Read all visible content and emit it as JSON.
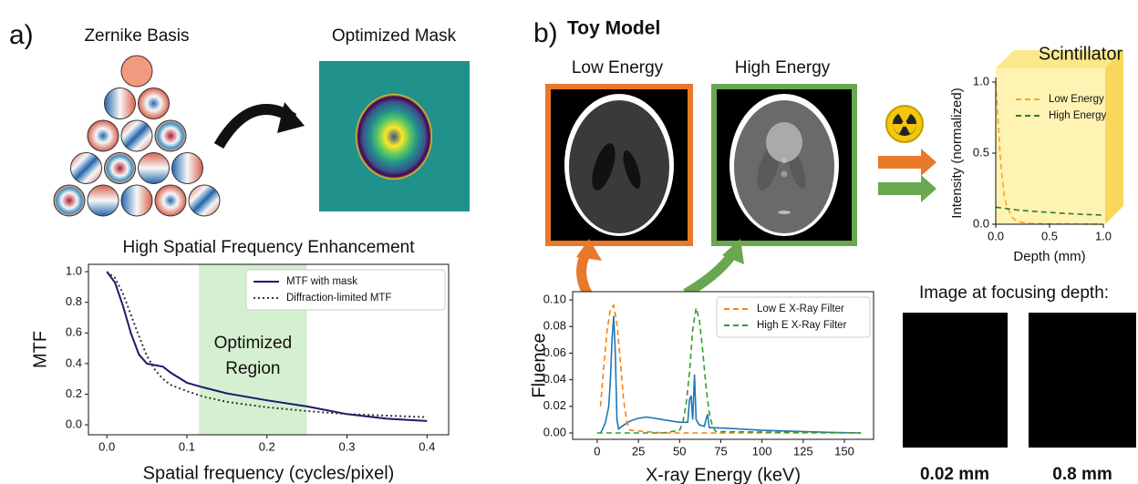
{
  "figure": {
    "panel_a": "a)",
    "zernike_title": "Zernike Basis",
    "mask_title": "Optimized Mask",
    "panel_b": "b)",
    "toy_title": "Toy Model",
    "low_title": "Low Energy",
    "high_title": "High Energy",
    "focus_title": "Image at focusing depth:",
    "depth_labels": [
      "0.02 mm",
      "0.8 mm"
    ]
  },
  "chart_data": [
    {
      "type": "line",
      "title": "High Spatial Frequency Enhancement",
      "x_label": "Spatial frequency (cycles/pixel)",
      "y_label": "MTF",
      "xlim": [
        -0.023,
        0.427
      ],
      "ylim": [
        -0.065,
        1.048
      ],
      "xticks": [
        {
          "value": 0,
          "label": "0.0"
        },
        0.1,
        0.2,
        0.3,
        0.4
      ],
      "yticks": [
        {
          "value": 0,
          "label": "0.0"
        },
        0.2,
        0.4,
        0.6,
        0.8,
        {
          "value": 1,
          "label": "1.0"
        }
      ],
      "span": [
        0.115,
        0.25
      ],
      "span_color": "#d5f0d0",
      "annotation": [
        "Optimized",
        "Region"
      ],
      "legend": "upper right",
      "series": [
        {
          "name": "MTF with mask",
          "color": "#1a1a6e",
          "linestyle": "solid",
          "x": [
            0,
            0.01,
            0.02,
            0.03,
            0.04,
            0.05,
            0.06,
            0.07,
            0.08,
            0.1,
            0.12,
            0.15,
            0.2,
            0.25,
            0.3,
            0.35,
            0.4
          ],
          "values": [
            1.0,
            0.93,
            0.78,
            0.6,
            0.46,
            0.4,
            0.39,
            0.38,
            0.34,
            0.275,
            0.245,
            0.205,
            0.16,
            0.12,
            0.07,
            0.04,
            0.025
          ]
        },
        {
          "name": "Diffraction-limited MTF",
          "color": "#333333",
          "linestyle": "dotted",
          "x": [
            0,
            0.01,
            0.02,
            0.03,
            0.04,
            0.05,
            0.06,
            0.07,
            0.08,
            0.1,
            0.12,
            0.15,
            0.2,
            0.25,
            0.3,
            0.35,
            0.4
          ],
          "values": [
            1.0,
            0.96,
            0.86,
            0.72,
            0.58,
            0.45,
            0.36,
            0.3,
            0.26,
            0.22,
            0.185,
            0.15,
            0.115,
            0.09,
            0.07,
            0.06,
            0.05
          ]
        }
      ]
    },
    {
      "type": "line",
      "x_label": "X-ray Energy (keV)",
      "y_label": "Fluence",
      "xlim": [
        -14.9,
        167.7
      ],
      "ylim": [
        -0.0048,
        0.1062
      ],
      "xticks": [
        0,
        25,
        50,
        75,
        100,
        125,
        150
      ],
      "yticks": [
        {
          "value": 0,
          "label": "0.00"
        },
        0.02,
        0.04,
        0.06,
        0.08,
        {
          "value": 0.1,
          "label": "0.10"
        }
      ],
      "legend": "upper right",
      "series": [
        {
          "color": "#1f77b4",
          "linestyle": "solid",
          "x": [
            2,
            3,
            5,
            7,
            8,
            9,
            10,
            11,
            12,
            13,
            15,
            20,
            25,
            30,
            35,
            40,
            45,
            50,
            55,
            56,
            57,
            58,
            59,
            60,
            62,
            65,
            66,
            67,
            68,
            70,
            80,
            100,
            120,
            140,
            160
          ],
          "values": [
            0,
            0.002,
            0.008,
            0.02,
            0.04,
            0.07,
            0.088,
            0.06,
            0.01,
            0.003,
            0.005,
            0.009,
            0.011,
            0.012,
            0.011,
            0.01,
            0.009,
            0.008,
            0.008,
            0.025,
            0.028,
            0.01,
            0.044,
            0.01,
            0.006,
            0.005,
            0.01,
            0.014,
            0.004,
            0.004,
            0.0035,
            0.002,
            0.0012,
            0.0005,
            0
          ]
        },
        {
          "name": "Low E X-Ray Filter",
          "color": "#ff7f0e",
          "linestyle": "dashed",
          "x": [
            2,
            4,
            6,
            8,
            10,
            12,
            14,
            16,
            18,
            20,
            40,
            160
          ],
          "values": [
            0.02,
            0.05,
            0.077,
            0.093,
            0.096,
            0.082,
            0.055,
            0.025,
            0.008,
            0.002,
            0,
            0
          ]
        },
        {
          "name": "High E X-Ray Filter",
          "color": "#2ca02c",
          "linestyle": "dashed",
          "x": [
            0,
            40,
            50,
            52,
            54,
            56,
            58,
            60,
            62,
            64,
            66,
            68,
            70,
            72,
            160
          ],
          "values": [
            0,
            0,
            0.002,
            0.008,
            0.022,
            0.045,
            0.078,
            0.094,
            0.085,
            0.062,
            0.035,
            0.015,
            0.005,
            0.001,
            0
          ]
        }
      ]
    },
    {
      "type": "line",
      "label": "Scintillator",
      "x_label": "Depth (mm)",
      "y_label": "Intensity (normalized)",
      "xlim": [
        0,
        1.0
      ],
      "ylim": [
        0,
        1.0
      ],
      "xticks": [
        {
          "value": 0,
          "label": "0.0"
        },
        0.5,
        {
          "value": 1,
          "label": "1.0"
        }
      ],
      "yticks": [
        {
          "value": 0,
          "label": "0.0"
        },
        0.5,
        {
          "value": 1,
          "label": "1.0"
        }
      ],
      "legend": "upper right",
      "series": [
        {
          "name": "Low Energy",
          "color": "#f5a623",
          "linestyle": "dashed",
          "x": [
            0,
            0.02,
            0.04,
            0.06,
            0.08,
            0.1,
            0.15,
            0.2,
            0.3,
            1.0
          ],
          "values": [
            1.0,
            0.75,
            0.5,
            0.32,
            0.2,
            0.13,
            0.05,
            0.02,
            0.005,
            0
          ]
        },
        {
          "name": "High Energy",
          "color": "#2a7d2a",
          "linestyle": "dashed",
          "x": [
            0,
            0.2,
            0.4,
            0.6,
            0.8,
            1.0
          ],
          "values": [
            0.12,
            0.1,
            0.088,
            0.078,
            0.07,
            0.064
          ]
        }
      ]
    }
  ]
}
